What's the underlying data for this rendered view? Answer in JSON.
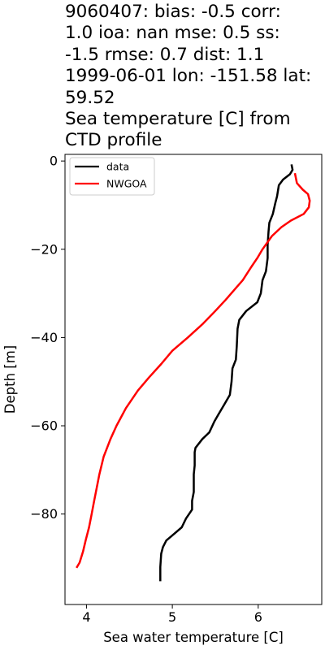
{
  "title_lines": [
    "9060407: bias: -0.5  corr:",
    "1.0  ioa: nan  mse: 0.5  ss:",
    "-1.5  rmse: 0.7  dist: 1.1",
    "1999-06-01 lon: -151.58 lat:",
    "59.52",
    "Sea temperature [C] from",
    "CTD profile"
  ],
  "chart_data": {
    "type": "line",
    "title": "9060407: bias: -0.5  corr: 1.0  ioa: nan  mse: 0.5  ss: -1.5  rmse: 0.7  dist: 1.1 1999-06-01 lon: -151.58 lat: 59.52 Sea temperature [C] from CTD profile",
    "xlabel": "Sea water temperature [C]",
    "ylabel": "Depth [m]",
    "xlim": [
      3.75,
      6.74
    ],
    "ylim": [
      -100.5,
      1.5
    ],
    "xticks": [
      4,
      5,
      6
    ],
    "xtick_labels": [
      "4",
      "5",
      "6"
    ],
    "yticks": [
      0,
      -20,
      -40,
      -60,
      -80
    ],
    "ytick_labels": [
      "0",
      "−20",
      "−40",
      "−60",
      "−80"
    ],
    "grid": false,
    "legend_position": "top-left",
    "series": [
      {
        "name": "data",
        "color": "#000000",
        "points": [
          [
            6.39,
            -1
          ],
          [
            6.4,
            -2
          ],
          [
            6.37,
            -3
          ],
          [
            6.29,
            -4.2
          ],
          [
            6.24,
            -5.5
          ],
          [
            6.22,
            -8
          ],
          [
            6.2,
            -9.5
          ],
          [
            6.17,
            -12
          ],
          [
            6.13,
            -14
          ],
          [
            6.12,
            -16
          ],
          [
            6.11,
            -19
          ],
          [
            6.11,
            -22
          ],
          [
            6.09,
            -25
          ],
          [
            6.05,
            -27
          ],
          [
            6.03,
            -30
          ],
          [
            5.99,
            -32
          ],
          [
            5.86,
            -34
          ],
          [
            5.78,
            -36
          ],
          [
            5.76,
            -38
          ],
          [
            5.75,
            -42
          ],
          [
            5.74,
            -45
          ],
          [
            5.7,
            -47
          ],
          [
            5.69,
            -50
          ],
          [
            5.67,
            -53
          ],
          [
            5.61,
            -55
          ],
          [
            5.55,
            -57
          ],
          [
            5.49,
            -59
          ],
          [
            5.43,
            -61.5
          ],
          [
            5.35,
            -63
          ],
          [
            5.27,
            -65
          ],
          [
            5.26,
            -66
          ],
          [
            5.26,
            -69
          ],
          [
            5.25,
            -71
          ],
          [
            5.25,
            -75
          ],
          [
            5.23,
            -77
          ],
          [
            5.23,
            -79
          ],
          [
            5.16,
            -81
          ],
          [
            5.11,
            -83
          ],
          [
            4.99,
            -85
          ],
          [
            4.93,
            -86
          ],
          [
            4.89,
            -87.5
          ],
          [
            4.87,
            -89
          ],
          [
            4.86,
            -92
          ],
          [
            4.86,
            -95
          ]
        ]
      },
      {
        "name": "NWGOA",
        "color": "#ff0000",
        "points": [
          [
            6.43,
            -3
          ],
          [
            6.45,
            -5
          ],
          [
            6.52,
            -6.5
          ],
          [
            6.58,
            -7.5
          ],
          [
            6.6,
            -9
          ],
          [
            6.59,
            -10.5
          ],
          [
            6.53,
            -12
          ],
          [
            6.38,
            -13.5
          ],
          [
            6.27,
            -15
          ],
          [
            6.16,
            -17
          ],
          [
            6.05,
            -20
          ],
          [
            5.99,
            -22
          ],
          [
            5.92,
            -24
          ],
          [
            5.82,
            -27
          ],
          [
            5.73,
            -29
          ],
          [
            5.62,
            -31.5
          ],
          [
            5.5,
            -34
          ],
          [
            5.35,
            -37
          ],
          [
            5.18,
            -40
          ],
          [
            5.0,
            -43
          ],
          [
            4.87,
            -46
          ],
          [
            4.73,
            -49
          ],
          [
            4.6,
            -52
          ],
          [
            4.46,
            -56
          ],
          [
            4.35,
            -60
          ],
          [
            4.28,
            -63
          ],
          [
            4.2,
            -67
          ],
          [
            4.15,
            -71
          ],
          [
            4.12,
            -74
          ],
          [
            4.09,
            -77
          ],
          [
            4.06,
            -80
          ],
          [
            4.03,
            -83
          ],
          [
            3.99,
            -86
          ],
          [
            3.96,
            -88.5
          ],
          [
            3.92,
            -91
          ],
          [
            3.89,
            -92
          ]
        ]
      }
    ]
  }
}
